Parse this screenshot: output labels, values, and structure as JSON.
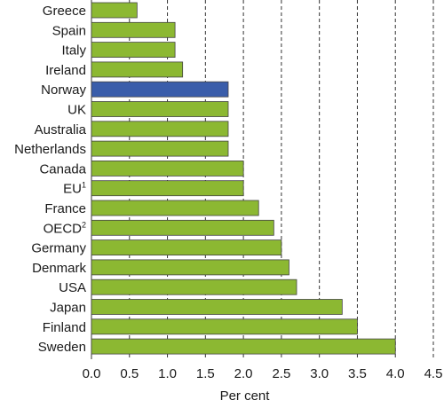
{
  "chart_data": {
    "type": "bar",
    "orientation": "horizontal",
    "categories": [
      "Greece",
      "Spain",
      "Italy",
      "Ireland",
      "Norway",
      "UK",
      "Australia",
      "Netherlands",
      "Canada",
      "EU",
      "France",
      "OECD",
      "Germany",
      "Denmark",
      "USA",
      "Japan",
      "Finland",
      "Sweden"
    ],
    "category_superscripts": [
      "",
      "",
      "",
      "",
      "",
      "",
      "",
      "",
      "",
      "1",
      "",
      "2",
      "",
      "",
      "",
      "",
      "",
      ""
    ],
    "values": [
      0.6,
      1.1,
      1.1,
      1.2,
      1.8,
      1.8,
      1.8,
      1.8,
      2.0,
      2.0,
      2.2,
      2.4,
      2.5,
      2.6,
      2.7,
      3.3,
      3.5,
      4.0
    ],
    "highlight_category": "Norway",
    "xlabel": "Per cent",
    "xlim": [
      0,
      4.5
    ],
    "xticks": [
      "0.0",
      "0.5",
      "1.0",
      "1.5",
      "2.0",
      "2.5",
      "3.0",
      "3.5",
      "4.0",
      "4.5"
    ],
    "grid": "vertical dashed",
    "colors": {
      "bar": "#8cb832",
      "highlight": "#3a5daa"
    }
  }
}
